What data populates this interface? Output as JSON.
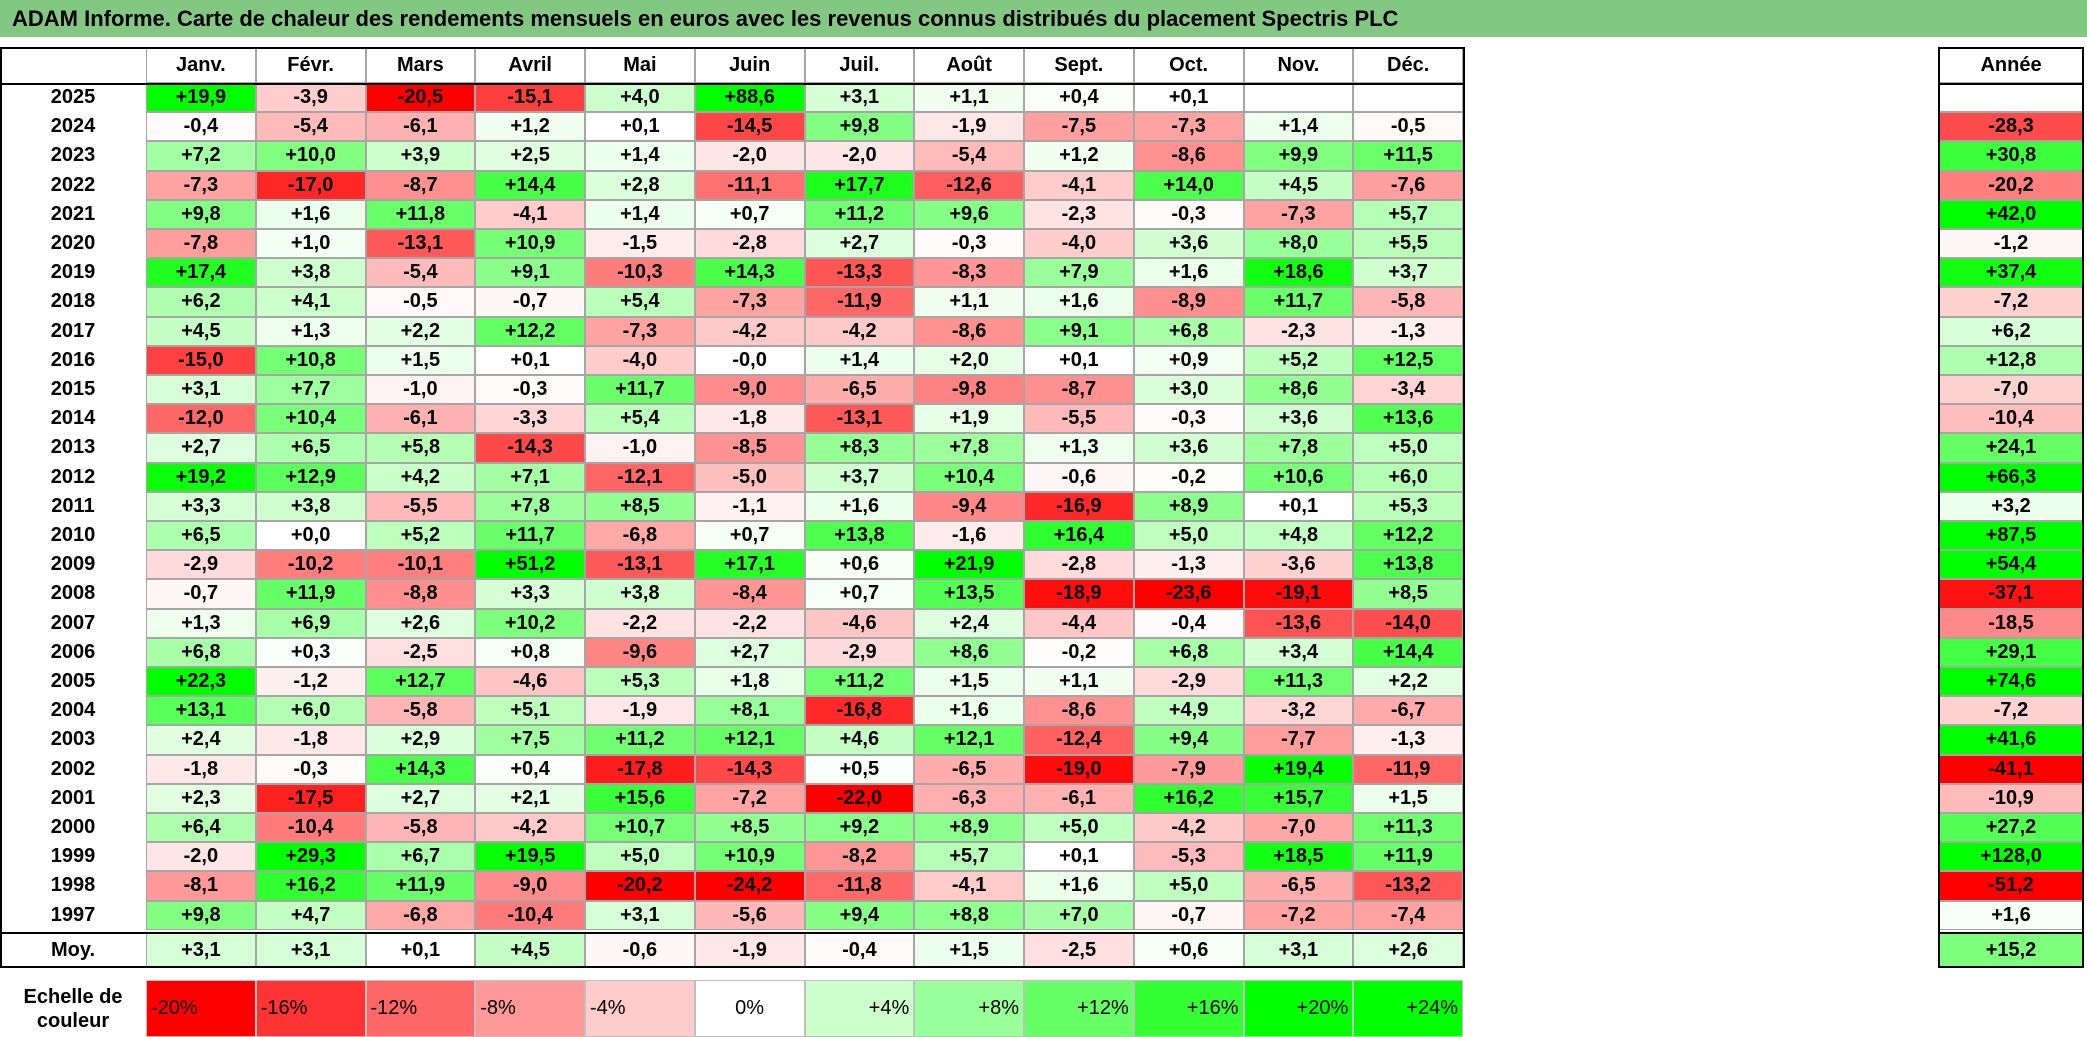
{
  "title": "ADAM Informe. Carte de chaleur des rendements mensuels en euros avec les revenus connus distribués du placement Spectris PLC",
  "colors": {
    "title_bg": "#82c882",
    "negative_max": "#ff0000",
    "positive_max": "#00ff00",
    "neutral": "#ffffff"
  },
  "chart_data": {
    "type": "heatmap",
    "title": "ADAM Informe. Carte de chaleur des rendements mensuels en euros avec les revenus connus distribués du placement Spectris PLC",
    "columns": [
      "Janv.",
      "Févr.",
      "Mars",
      "Avril",
      "Mai",
      "Juin",
      "Juil.",
      "Août",
      "Sept.",
      "Oct.",
      "Nov.",
      "Déc."
    ],
    "year_column_label": "Année",
    "rows": [
      {
        "year": "2025",
        "values": [
          "+19,9",
          "-3,9",
          "-20,5",
          "-15,1",
          "+4,0",
          "+88,6",
          "+3,1",
          "+1,1",
          "+0,4",
          "+0,1",
          "",
          ""
        ],
        "annual": ""
      },
      {
        "year": "2024",
        "values": [
          "-0,4",
          "-5,4",
          "-6,1",
          "+1,2",
          "+0,1",
          "-14,5",
          "+9,8",
          "-1,9",
          "-7,5",
          "-7,3",
          "+1,4",
          "-0,5"
        ],
        "annual": "-28,3"
      },
      {
        "year": "2023",
        "values": [
          "+7,2",
          "+10,0",
          "+3,9",
          "+2,5",
          "+1,4",
          "-2,0",
          "-2,0",
          "-5,4",
          "+1,2",
          "-8,6",
          "+9,9",
          "+11,5"
        ],
        "annual": "+30,8"
      },
      {
        "year": "2022",
        "values": [
          "-7,3",
          "-17,0",
          "-8,7",
          "+14,4",
          "+2,8",
          "-11,1",
          "+17,7",
          "-12,6",
          "-4,1",
          "+14,0",
          "+4,5",
          "-7,6"
        ],
        "annual": "-20,2"
      },
      {
        "year": "2021",
        "values": [
          "+9,8",
          "+1,6",
          "+11,8",
          "-4,1",
          "+1,4",
          "+0,7",
          "+11,2",
          "+9,6",
          "-2,3",
          "-0,3",
          "-7,3",
          "+5,7"
        ],
        "annual": "+42,0"
      },
      {
        "year": "2020",
        "values": [
          "-7,8",
          "+1,0",
          "-13,1",
          "+10,9",
          "-1,5",
          "-2,8",
          "+2,7",
          "-0,3",
          "-4,0",
          "+3,6",
          "+8,0",
          "+5,5"
        ],
        "annual": "-1,2"
      },
      {
        "year": "2019",
        "values": [
          "+17,4",
          "+3,8",
          "-5,4",
          "+9,1",
          "-10,3",
          "+14,3",
          "-13,3",
          "-8,3",
          "+7,9",
          "+1,6",
          "+18,6",
          "+3,7"
        ],
        "annual": "+37,4"
      },
      {
        "year": "2018",
        "values": [
          "+6,2",
          "+4,1",
          "-0,5",
          "-0,7",
          "+5,4",
          "-7,3",
          "-11,9",
          "+1,1",
          "+1,6",
          "-8,9",
          "+11,7",
          "-5,8"
        ],
        "annual": "-7,2"
      },
      {
        "year": "2017",
        "values": [
          "+4,5",
          "+1,3",
          "+2,2",
          "+12,2",
          "-7,3",
          "-4,2",
          "-4,2",
          "-8,6",
          "+9,1",
          "+6,8",
          "-2,3",
          "-1,3"
        ],
        "annual": "+6,2"
      },
      {
        "year": "2016",
        "values": [
          "-15,0",
          "+10,8",
          "+1,5",
          "+0,1",
          "-4,0",
          "-0,0",
          "+1,4",
          "+2,0",
          "+0,1",
          "+0,9",
          "+5,2",
          "+12,5"
        ],
        "annual": "+12,8"
      },
      {
        "year": "2015",
        "values": [
          "+3,1",
          "+7,7",
          "-1,0",
          "-0,3",
          "+11,7",
          "-9,0",
          "-6,5",
          "-9,8",
          "-8,7",
          "+3,0",
          "+8,6",
          "-3,4"
        ],
        "annual": "-7,0"
      },
      {
        "year": "2014",
        "values": [
          "-12,0",
          "+10,4",
          "-6,1",
          "-3,3",
          "+5,4",
          "-1,8",
          "-13,1",
          "+1,9",
          "-5,5",
          "-0,3",
          "+3,6",
          "+13,6"
        ],
        "annual": "-10,4"
      },
      {
        "year": "2013",
        "values": [
          "+2,7",
          "+6,5",
          "+5,8",
          "-14,3",
          "-1,0",
          "-8,5",
          "+8,3",
          "+7,8",
          "+1,3",
          "+3,6",
          "+7,8",
          "+5,0"
        ],
        "annual": "+24,1"
      },
      {
        "year": "2012",
        "values": [
          "+19,2",
          "+12,9",
          "+4,2",
          "+7,1",
          "-12,1",
          "-5,0",
          "+3,7",
          "+10,4",
          "-0,6",
          "-0,2",
          "+10,6",
          "+6,0"
        ],
        "annual": "+66,3"
      },
      {
        "year": "2011",
        "values": [
          "+3,3",
          "+3,8",
          "-5,5",
          "+7,8",
          "+8,5",
          "-1,1",
          "+1,6",
          "-9,4",
          "-16,9",
          "+8,9",
          "+0,1",
          "+5,3"
        ],
        "annual": "+3,2"
      },
      {
        "year": "2010",
        "values": [
          "+6,5",
          "+0,0",
          "+5,2",
          "+11,7",
          "-6,8",
          "+0,7",
          "+13,8",
          "-1,6",
          "+16,4",
          "+5,0",
          "+4,8",
          "+12,2"
        ],
        "annual": "+87,5"
      },
      {
        "year": "2009",
        "values": [
          "-2,9",
          "-10,2",
          "-10,1",
          "+51,2",
          "-13,1",
          "+17,1",
          "+0,6",
          "+21,9",
          "-2,8",
          "-1,3",
          "-3,6",
          "+13,8"
        ],
        "annual": "+54,4"
      },
      {
        "year": "2008",
        "values": [
          "-0,7",
          "+11,9",
          "-8,8",
          "+3,3",
          "+3,8",
          "-8,4",
          "+0,7",
          "+13,5",
          "-18,9",
          "-23,6",
          "-19,1",
          "+8,5"
        ],
        "annual": "-37,1"
      },
      {
        "year": "2007",
        "values": [
          "+1,3",
          "+6,9",
          "+2,6",
          "+10,2",
          "-2,2",
          "-2,2",
          "-4,6",
          "+2,4",
          "-4,4",
          "-0,4",
          "-13,6",
          "-14,0"
        ],
        "annual": "-18,5"
      },
      {
        "year": "2006",
        "values": [
          "+6,8",
          "+0,3",
          "-2,5",
          "+0,8",
          "-9,6",
          "+2,7",
          "-2,9",
          "+8,6",
          "-0,2",
          "+6,8",
          "+3,4",
          "+14,4"
        ],
        "annual": "+29,1"
      },
      {
        "year": "2005",
        "values": [
          "+22,3",
          "-1,2",
          "+12,7",
          "-4,6",
          "+5,3",
          "+1,8",
          "+11,2",
          "+1,5",
          "+1,1",
          "-2,9",
          "+11,3",
          "+2,2"
        ],
        "annual": "+74,6"
      },
      {
        "year": "2004",
        "values": [
          "+13,1",
          "+6,0",
          "-5,8",
          "+5,1",
          "-1,9",
          "+8,1",
          "-16,8",
          "+1,6",
          "-8,6",
          "+4,9",
          "-3,2",
          "-6,7"
        ],
        "annual": "-7,2"
      },
      {
        "year": "2003",
        "values": [
          "+2,4",
          "-1,8",
          "+2,9",
          "+7,5",
          "+11,2",
          "+12,1",
          "+4,6",
          "+12,1",
          "-12,4",
          "+9,4",
          "-7,7",
          "-1,3"
        ],
        "annual": "+41,6"
      },
      {
        "year": "2002",
        "values": [
          "-1,8",
          "-0,3",
          "+14,3",
          "+0,4",
          "-17,8",
          "-14,3",
          "+0,5",
          "-6,5",
          "-19,0",
          "-7,9",
          "+19,4",
          "-11,9"
        ],
        "annual": "-41,1"
      },
      {
        "year": "2001",
        "values": [
          "+2,3",
          "-17,5",
          "+2,7",
          "+2,1",
          "+15,6",
          "-7,2",
          "-22,0",
          "-6,3",
          "-6,1",
          "+16,2",
          "+15,7",
          "+1,5"
        ],
        "annual": "-10,9"
      },
      {
        "year": "2000",
        "values": [
          "+6,4",
          "-10,4",
          "-5,8",
          "-4,2",
          "+10,7",
          "+8,5",
          "+9,2",
          "+8,9",
          "+5,0",
          "-4,2",
          "-7,0",
          "+11,3"
        ],
        "annual": "+27,2"
      },
      {
        "year": "1999",
        "values": [
          "-2,0",
          "+29,3",
          "+6,7",
          "+19,5",
          "+5,0",
          "+10,9",
          "-8,2",
          "+5,7",
          "+0,1",
          "-5,3",
          "+18,5",
          "+11,9"
        ],
        "annual": "+128,0"
      },
      {
        "year": "1998",
        "values": [
          "-8,1",
          "+16,2",
          "+11,9",
          "-9,0",
          "-20,2",
          "-24,2",
          "-11,8",
          "-4,1",
          "+1,6",
          "+5,0",
          "-6,5",
          "-13,2"
        ],
        "annual": "-51,2"
      },
      {
        "year": "1997",
        "values": [
          "+9,8",
          "+4,7",
          "-6,8",
          "-10,4",
          "+3,1",
          "-5,6",
          "+9,4",
          "+8,8",
          "+7,0",
          "-0,7",
          "-7,2",
          "-7,4"
        ],
        "annual": "+1,6"
      }
    ],
    "average": {
      "label": "Moy.",
      "values": [
        "+3,1",
        "+3,1",
        "+0,1",
        "+4,5",
        "-0,6",
        "-1,9",
        "-0,4",
        "+1,5",
        "-2,5",
        "+0,6",
        "+3,1",
        "+2,6"
      ],
      "annual": "+15,2"
    },
    "color_scale": {
      "label": "Echelle de couleur",
      "stops": [
        "-20%",
        "-16%",
        "-12%",
        "-8%",
        "-4%",
        "0%",
        "+4%",
        "+8%",
        "+12%",
        "+16%",
        "+20%",
        "+24%"
      ]
    }
  }
}
